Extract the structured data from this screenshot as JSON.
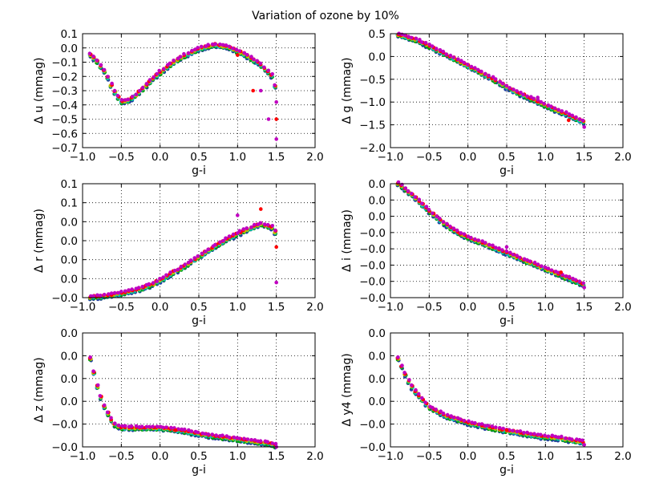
{
  "chart_data": {
    "title": "Variation of ozone by 10%",
    "type": "scatter",
    "series_colors": [
      "#1f3f9f",
      "#00a000",
      "#00c0c0",
      "#c0c000",
      "#ff0000",
      "#c000c0"
    ],
    "subplots": [
      {
        "id": "u",
        "ylabel": "Δ u (mmag)",
        "xlabel": "g-i",
        "xlim": [
          -1.0,
          2.0
        ],
        "ylim": [
          -0.7,
          0.1
        ],
        "xticks": [
          "−1.0",
          "−0.5",
          "0.0",
          "0.5",
          "1.0",
          "1.5",
          "2.0"
        ],
        "yticks": [
          "−0.7",
          "−0.6",
          "−0.5",
          "−0.4",
          "−0.3",
          "−0.2",
          "−0.1",
          "0.0",
          "0.1"
        ],
        "curve": [
          [
            -0.9,
            -0.05
          ],
          [
            -0.8,
            -0.1
          ],
          [
            -0.7,
            -0.18
          ],
          [
            -0.6,
            -0.3
          ],
          [
            -0.5,
            -0.38
          ],
          [
            -0.4,
            -0.37
          ],
          [
            -0.3,
            -0.33
          ],
          [
            -0.1,
            -0.22
          ],
          [
            0.1,
            -0.13
          ],
          [
            0.3,
            -0.06
          ],
          [
            0.5,
            -0.01
          ],
          [
            0.7,
            0.02
          ],
          [
            0.9,
            0.0
          ],
          [
            1.1,
            -0.05
          ],
          [
            1.3,
            -0.12
          ],
          [
            1.45,
            -0.2
          ],
          [
            1.5,
            -0.3
          ]
        ],
        "outliers": [
          [
            1.4,
            -0.5
          ],
          [
            1.5,
            -0.5
          ],
          [
            1.5,
            -0.64
          ],
          [
            1.2,
            -0.3
          ],
          [
            1.3,
            -0.3
          ],
          [
            1.0,
            -0.05
          ],
          [
            1.5,
            -0.38
          ]
        ]
      },
      {
        "id": "g",
        "ylabel": "Δ g (mmag)",
        "xlabel": "g-i",
        "xlim": [
          -1.0,
          2.0
        ],
        "ylim": [
          -2.0,
          0.5
        ],
        "xticks": [
          "−1.0",
          "−0.5",
          "0.0",
          "0.5",
          "1.0",
          "1.5",
          "2.0"
        ],
        "yticks": [
          "−2.0",
          "−1.5",
          "−1.0",
          "−0.5",
          "0.0",
          "0.5"
        ],
        "curve": [
          [
            -0.9,
            0.47
          ],
          [
            -0.7,
            0.38
          ],
          [
            -0.5,
            0.22
          ],
          [
            -0.3,
            0.05
          ],
          [
            -0.1,
            -0.12
          ],
          [
            0.1,
            -0.3
          ],
          [
            0.3,
            -0.48
          ],
          [
            0.5,
            -0.68
          ],
          [
            0.7,
            -0.85
          ],
          [
            0.9,
            -1.0
          ],
          [
            1.1,
            -1.15
          ],
          [
            1.3,
            -1.3
          ],
          [
            1.5,
            -1.45
          ]
        ],
        "outliers": [
          [
            1.5,
            -1.55
          ],
          [
            1.3,
            -1.4
          ],
          [
            0.9,
            -0.9
          ]
        ]
      },
      {
        "id": "r",
        "ylabel": "Δ r (mmag)",
        "xlabel": "g-i",
        "xlim": [
          -1.0,
          2.0
        ],
        "ylim": [
          -0.8,
          0.1
        ],
        "xticks": [
          "−1.0",
          "−0.5",
          "0.0",
          "0.5",
          "1.0",
          "1.5",
          "2.0"
        ],
        "yticks": [
          "−0.0",
          "0.0",
          "0.0",
          "0.0",
          "0.0",
          "0.1",
          "0.1"
        ],
        "curve": [
          [
            -0.9,
            -0.8
          ],
          [
            -0.7,
            -0.79
          ],
          [
            -0.5,
            -0.77
          ],
          [
            -0.3,
            -0.74
          ],
          [
            -0.1,
            -0.7
          ],
          [
            0.1,
            -0.63
          ],
          [
            0.3,
            -0.56
          ],
          [
            0.5,
            -0.48
          ],
          [
            0.7,
            -0.4
          ],
          [
            0.9,
            -0.33
          ],
          [
            1.1,
            -0.27
          ],
          [
            1.3,
            -0.22
          ],
          [
            1.45,
            -0.25
          ],
          [
            1.5,
            -0.3
          ]
        ],
        "outliers": [
          [
            1.5,
            -0.68
          ],
          [
            1.3,
            -0.1
          ],
          [
            1.0,
            -0.15
          ],
          [
            1.5,
            -0.4
          ]
        ]
      },
      {
        "id": "i",
        "ylabel": "Δ i (mmag)",
        "xlabel": "g-i",
        "xlim": [
          -1.0,
          2.0
        ],
        "ylim": [
          -0.8,
          0.1
        ],
        "xticks": [
          "−1.0",
          "−0.5",
          "0.0",
          "0.5",
          "1.0",
          "1.5",
          "2.0"
        ],
        "yticks": [
          "−0.0",
          "−0.0",
          "−0.0",
          "−0.0",
          "−0.0",
          "0.0",
          "0.0",
          "0.0"
        ],
        "curve": [
          [
            -0.9,
            0.1
          ],
          [
            -0.7,
            0.0
          ],
          [
            -0.5,
            -0.12
          ],
          [
            -0.3,
            -0.22
          ],
          [
            -0.1,
            -0.3
          ],
          [
            0.1,
            -0.35
          ],
          [
            0.3,
            -0.4
          ],
          [
            0.5,
            -0.45
          ],
          [
            0.7,
            -0.5
          ],
          [
            0.9,
            -0.55
          ],
          [
            1.1,
            -0.6
          ],
          [
            1.3,
            -0.65
          ],
          [
            1.5,
            -0.7
          ]
        ],
        "outliers": [
          [
            1.5,
            -0.72
          ],
          [
            1.2,
            -0.6
          ],
          [
            0.5,
            -0.4
          ]
        ]
      },
      {
        "id": "z",
        "ylabel": "Δ z (mmag)",
        "xlabel": "g-i",
        "xlim": [
          -1.0,
          2.0
        ],
        "ylim": [
          -0.8,
          0.3
        ],
        "xticks": [
          "−1.0",
          "−0.5",
          "0.0",
          "0.5",
          "1.0",
          "1.5",
          "2.0"
        ],
        "yticks": [
          "−0.0",
          "−0.0",
          "0.0",
          "0.0",
          "0.0",
          "0.0"
        ],
        "curve": [
          [
            -0.9,
            0.05
          ],
          [
            -0.8,
            -0.25
          ],
          [
            -0.7,
            -0.45
          ],
          [
            -0.6,
            -0.58
          ],
          [
            -0.5,
            -0.62
          ],
          [
            -0.3,
            -0.62
          ],
          [
            0.0,
            -0.62
          ],
          [
            0.3,
            -0.65
          ],
          [
            0.6,
            -0.69
          ],
          [
            0.9,
            -0.72
          ],
          [
            1.2,
            -0.75
          ],
          [
            1.4,
            -0.77
          ],
          [
            1.5,
            -0.79
          ]
        ],
        "outliers": [
          [
            1.5,
            -0.8
          ],
          [
            0.2,
            -0.64
          ]
        ]
      },
      {
        "id": "y4",
        "ylabel": "Δ y4 (mmag)",
        "xlabel": "g-i",
        "xlim": [
          -1.0,
          2.0
        ],
        "ylim": [
          -0.8,
          0.3
        ],
        "xticks": [
          "−1.0",
          "−0.5",
          "0.0",
          "0.5",
          "1.0",
          "1.5",
          "2.0"
        ],
        "yticks": [
          "−0.0",
          "−0.0",
          "0.0",
          "0.0",
          "0.0",
          "0.0"
        ],
        "curve": [
          [
            -0.9,
            0.05
          ],
          [
            -0.8,
            -0.12
          ],
          [
            -0.7,
            -0.25
          ],
          [
            -0.5,
            -0.42
          ],
          [
            -0.3,
            -0.5
          ],
          [
            0.0,
            -0.57
          ],
          [
            0.3,
            -0.62
          ],
          [
            0.6,
            -0.66
          ],
          [
            0.9,
            -0.7
          ],
          [
            1.2,
            -0.72
          ],
          [
            1.5,
            -0.76
          ]
        ],
        "outliers": [
          [
            1.5,
            -0.78
          ],
          [
            0.5,
            -0.64
          ]
        ]
      }
    ]
  }
}
